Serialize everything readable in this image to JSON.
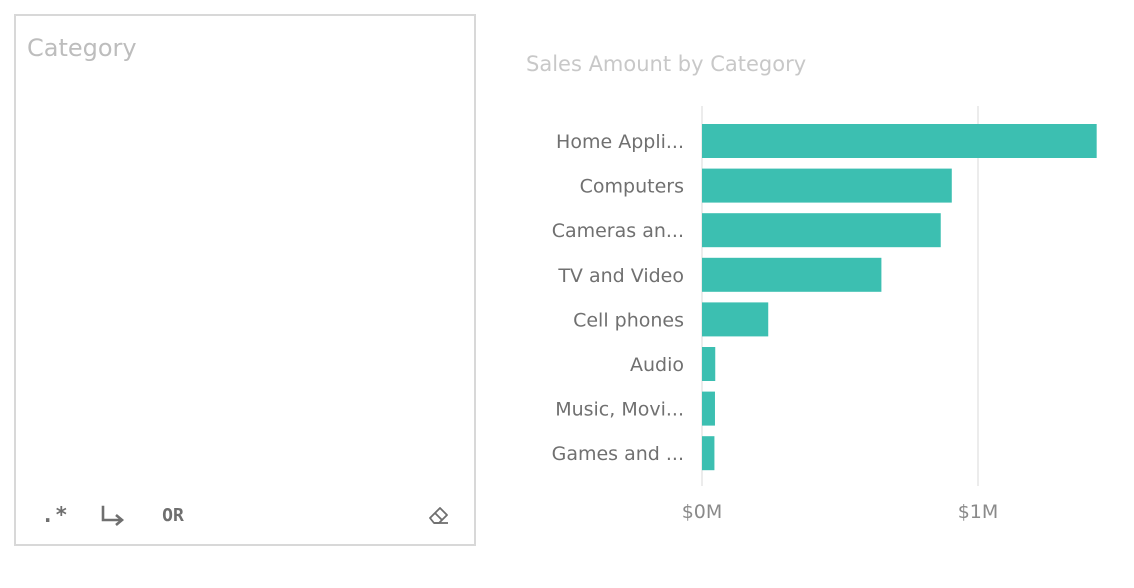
{
  "slicer": {
    "title": "Category",
    "toolbar": {
      "regex_label": ".*",
      "or_label": "OR",
      "wrap_icon": "arrow-down-right-icon",
      "clear_icon": "eraser-icon"
    }
  },
  "chart_data": {
    "type": "bar",
    "orientation": "horizontal",
    "title": "Sales Amount by Category",
    "categories": [
      "Home Appli...",
      "Computers",
      "Cameras an...",
      "TV and Video",
      "Cell phones",
      "Audio",
      "Music, Movi...",
      "Games and ..."
    ],
    "values": [
      1430000,
      905000,
      865000,
      650000,
      240000,
      48000,
      47000,
      45000
    ],
    "xlim": [
      0,
      1500000
    ],
    "xticks": [
      {
        "value": 0,
        "label": "$0M"
      },
      {
        "value": 1000000,
        "label": "$1M"
      }
    ],
    "xlabel": "",
    "ylabel": "",
    "grid": true,
    "bar_color": "#3cbfb1"
  }
}
